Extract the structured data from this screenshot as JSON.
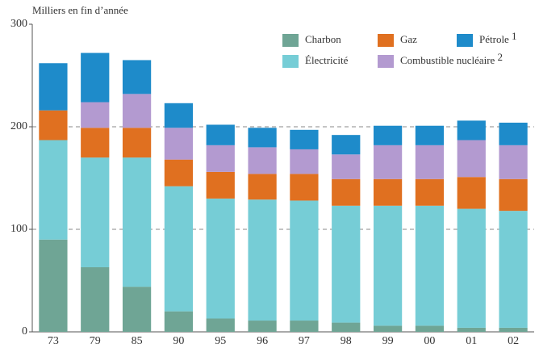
{
  "chart_data": {
    "type": "stacked_bar",
    "subtitle": "Milliers en fin d’année",
    "categories": [
      "73",
      "79",
      "85",
      "90",
      "95",
      "96",
      "97",
      "98",
      "99",
      "00",
      "01",
      "02"
    ],
    "series": [
      {
        "name": "Charbon",
        "color": "#6fa595",
        "values": [
          90,
          63,
          44,
          20,
          13,
          11,
          11,
          9,
          6,
          6,
          4,
          4
        ]
      },
      {
        "name": "Électricité",
        "color": "#76cdd6",
        "values": [
          97,
          107,
          126,
          122,
          117,
          118,
          117,
          114,
          117,
          117,
          116,
          114
        ]
      },
      {
        "name": "Gaz",
        "color": "#e07020",
        "values": [
          29,
          29,
          29,
          26,
          26,
          25,
          26,
          26,
          26,
          26,
          31,
          31
        ]
      },
      {
        "name": "Combustible nucléaire",
        "note": "2",
        "color": "#b39ad0",
        "values": [
          0,
          25,
          33,
          31,
          26,
          26,
          24,
          24,
          33,
          33,
          36,
          33
        ]
      },
      {
        "name": "Pétrole",
        "note": "1",
        "color": "#1e8bca",
        "values": [
          46,
          48,
          33,
          24,
          20,
          19,
          19,
          19,
          19,
          19,
          19,
          22
        ]
      }
    ],
    "ylim": [
      0,
      300
    ],
    "yticks": [
      0,
      100,
      200,
      300
    ],
    "grid": true
  }
}
